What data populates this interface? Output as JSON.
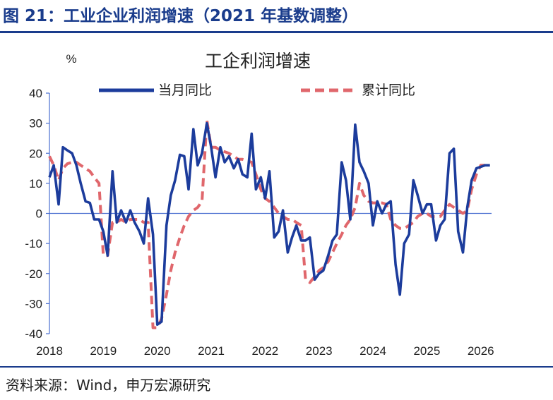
{
  "header": {
    "title": "图 21：工业企业利润增速（2021 年基数调整）"
  },
  "footer": {
    "source": "资料来源：Wind，申万宏源研究"
  },
  "colors": {
    "monthly": "#1c3c9c",
    "cumulative": "#e0676c",
    "axis": "#4a6fd0"
  },
  "chart_data": {
    "type": "line",
    "title": "工企利润增速",
    "ylabel": "%",
    "xlabel": "",
    "ylim": [
      -40,
      40
    ],
    "yticks": [
      -40,
      -30,
      -20,
      -10,
      0,
      10,
      20,
      30,
      40
    ],
    "xlim": [
      2018,
      2026.2
    ],
    "xticks": [
      2018,
      2019,
      2020,
      2021,
      2022,
      2023,
      2024,
      2025,
      2026
    ],
    "legend": "top",
    "series": [
      {
        "name": "当月同比",
        "style": "solid",
        "x": [
          2018.0,
          2018.08,
          2018.17,
          2018.25,
          2018.33,
          2018.42,
          2018.5,
          2018.58,
          2018.67,
          2018.75,
          2018.83,
          2018.92,
          2019.0,
          2019.08,
          2019.17,
          2019.25,
          2019.33,
          2019.42,
          2019.5,
          2019.58,
          2019.67,
          2019.75,
          2019.83,
          2019.92,
          2020.0,
          2020.08,
          2020.17,
          2020.25,
          2020.33,
          2020.42,
          2020.5,
          2020.58,
          2020.67,
          2020.75,
          2020.83,
          2020.92,
          2021.0,
          2021.08,
          2021.17,
          2021.25,
          2021.33,
          2021.42,
          2021.5,
          2021.58,
          2021.67,
          2021.75,
          2021.83,
          2021.92,
          2022.0,
          2022.08,
          2022.17,
          2022.25,
          2022.33,
          2022.42,
          2022.5,
          2022.58,
          2022.67,
          2022.75,
          2022.83,
          2022.92,
          2023.0,
          2023.08,
          2023.17,
          2023.25,
          2023.33,
          2023.42,
          2023.5,
          2023.58,
          2023.67,
          2023.75,
          2023.83,
          2023.92,
          2024.0,
          2024.08,
          2024.17,
          2024.25,
          2024.33,
          2024.42,
          2024.5,
          2024.58,
          2024.67,
          2024.75,
          2024.83,
          2024.92,
          2025.0,
          2025.08,
          2025.17,
          2025.25,
          2025.33,
          2025.42,
          2025.5,
          2025.58,
          2025.67,
          2025.75,
          2025.83,
          2025.92,
          2026.0,
          2026.08,
          2026.17
        ],
        "y": [
          12,
          16,
          3,
          22,
          21,
          20,
          16,
          10,
          4,
          3.5,
          -2,
          -2,
          -6,
          -14,
          14,
          -3,
          1,
          -3,
          1,
          -3,
          -6,
          -10,
          5,
          -7,
          -37,
          -36,
          -4,
          6,
          11,
          19.5,
          19,
          8,
          28,
          16,
          20,
          30,
          22,
          12,
          22,
          17,
          19,
          15,
          18,
          13,
          12,
          26.5,
          8,
          12,
          5,
          14,
          -8,
          -6,
          1,
          -13,
          -8,
          -4,
          -9,
          -9,
          -8,
          -22,
          -20,
          -19,
          -14,
          -9,
          -7,
          17,
          11,
          -2,
          29.5,
          17,
          14,
          10,
          -4,
          4,
          0,
          3,
          4,
          -17,
          -27,
          -10,
          -7,
          11,
          6,
          0,
          3,
          3,
          -9,
          -4,
          -2,
          20,
          21.5,
          -6,
          -13,
          2,
          11,
          15,
          15.5,
          16,
          16
        ],
        "stroke": "#1c3c9c"
      },
      {
        "name": "累计同比",
        "style": "dashed",
        "x": [
          2018.0,
          2018.08,
          2018.17,
          2018.25,
          2018.33,
          2018.42,
          2018.5,
          2018.58,
          2018.67,
          2018.75,
          2018.83,
          2018.92,
          2019.0,
          2019.08,
          2019.17,
          2019.25,
          2019.33,
          2019.42,
          2019.5,
          2019.58,
          2019.67,
          2019.75,
          2019.83,
          2019.92,
          2020.0,
          2020.08,
          2020.17,
          2020.25,
          2020.33,
          2020.42,
          2020.5,
          2020.58,
          2020.67,
          2020.75,
          2020.83,
          2020.92,
          2021.0,
          2021.08,
          2021.17,
          2021.25,
          2021.33,
          2021.42,
          2021.5,
          2021.58,
          2021.67,
          2021.75,
          2021.83,
          2021.92,
          2022.0,
          2022.08,
          2022.17,
          2022.25,
          2022.33,
          2022.42,
          2022.5,
          2022.58,
          2022.67,
          2022.75,
          2022.83,
          2022.92,
          2023.0,
          2023.08,
          2023.17,
          2023.25,
          2023.33,
          2023.42,
          2023.5,
          2023.58,
          2023.67,
          2023.75,
          2023.83,
          2023.92,
          2024.0,
          2024.08,
          2024.17,
          2024.25,
          2024.33,
          2024.42,
          2024.5,
          2024.58,
          2024.67,
          2024.75,
          2024.83,
          2024.92,
          2025.0,
          2025.08,
          2025.17,
          2025.25,
          2025.33,
          2025.42,
          2025.5,
          2025.58,
          2025.67,
          2025.75,
          2025.83,
          2025.92,
          2026.0,
          2026.08,
          2026.17
        ],
        "y": [
          19,
          16,
          11,
          15,
          16.5,
          17,
          17,
          16,
          15,
          14,
          12,
          10,
          -14,
          -14,
          -3,
          -3,
          -2,
          -3,
          -2,
          -2,
          -2,
          -3,
          -3,
          -38,
          -38,
          -35,
          -27,
          -19,
          -13,
          -8,
          -4,
          -1,
          1,
          2,
          4,
          31,
          22,
          22,
          21,
          20.5,
          20,
          19,
          18,
          18,
          17.5,
          17,
          13,
          8,
          5,
          4,
          2,
          0,
          -1,
          -2,
          -2,
          -3,
          -4,
          -22,
          -23,
          -21,
          -19,
          -18,
          -16,
          -13,
          -10,
          -7,
          -4,
          -2,
          2,
          10,
          6,
          4,
          3.5,
          3.5,
          3.5,
          3,
          -2,
          -4,
          -5,
          -5,
          -4,
          -3,
          -1,
          0,
          0,
          -1,
          -1,
          -1,
          1,
          3,
          2,
          1,
          0,
          1,
          8,
          13,
          16,
          16,
          16
        ],
        "stroke": "#e0676c"
      }
    ]
  }
}
